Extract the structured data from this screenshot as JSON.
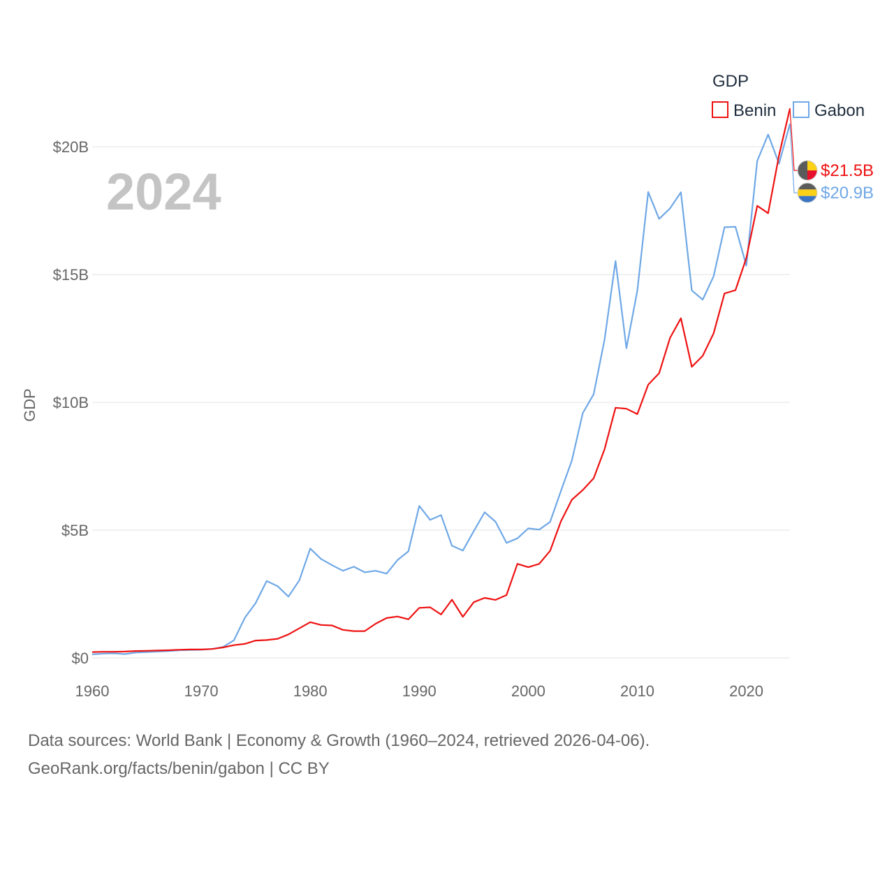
{
  "chart_data": {
    "type": "line",
    "title": "",
    "xlabel": "",
    "ylabel": "GDP",
    "current_year_label": "2024",
    "xlim": [
      1960,
      2024
    ],
    "ylim": [
      0,
      22000000000
    ],
    "x_ticks": [
      1960,
      1970,
      1980,
      1990,
      2000,
      2010,
      2020
    ],
    "x_tick_labels": [
      "1960",
      "1970",
      "1980",
      "1990",
      "2000",
      "2010",
      "2020"
    ],
    "y_ticks": [
      0,
      5000000000,
      10000000000,
      15000000000,
      20000000000
    ],
    "y_tick_labels": [
      "$0",
      "$5B",
      "$10B",
      "$15B",
      "$20B"
    ],
    "grid": true,
    "legend": {
      "title": "GDP",
      "placement": "top-right",
      "entries": [
        "Benin",
        "Gabon"
      ]
    },
    "x": [
      1960,
      1961,
      1962,
      1963,
      1964,
      1965,
      1966,
      1967,
      1968,
      1969,
      1970,
      1971,
      1972,
      1973,
      1974,
      1975,
      1976,
      1977,
      1978,
      1979,
      1980,
      1981,
      1982,
      1983,
      1984,
      1985,
      1986,
      1987,
      1988,
      1989,
      1990,
      1991,
      1992,
      1993,
      1994,
      1995,
      1996,
      1997,
      1998,
      1999,
      2000,
      2001,
      2002,
      2003,
      2004,
      2005,
      2006,
      2007,
      2008,
      2009,
      2010,
      2011,
      2012,
      2013,
      2014,
      2015,
      2016,
      2017,
      2018,
      2019,
      2020,
      2021,
      2022,
      2023,
      2024
    ],
    "series": [
      {
        "name": "Benin",
        "color": "#ee1111",
        "end_label": "$21.5B",
        "flag_colors": [
          "#5b5b5b",
          "#fcd116",
          "#e8112d"
        ],
        "values": [
          0.23,
          0.24,
          0.24,
          0.25,
          0.27,
          0.28,
          0.29,
          0.3,
          0.32,
          0.33,
          0.33,
          0.35,
          0.41,
          0.5,
          0.55,
          0.68,
          0.7,
          0.75,
          0.92,
          1.16,
          1.4,
          1.29,
          1.27,
          1.1,
          1.05,
          1.05,
          1.34,
          1.56,
          1.62,
          1.51,
          1.96,
          1.98,
          1.7,
          2.28,
          1.61,
          2.18,
          2.35,
          2.27,
          2.46,
          3.68,
          3.55,
          3.68,
          4.19,
          5.35,
          6.19,
          6.57,
          7.03,
          8.17,
          9.79,
          9.75,
          9.54,
          10.69,
          11.14,
          12.52,
          13.29,
          11.39,
          11.82,
          12.7,
          14.26,
          14.39,
          15.65,
          17.69,
          17.4,
          19.67,
          21.5
        ]
      },
      {
        "name": "Gabon",
        "color": "#6fa8e6",
        "end_label": "$20.9B",
        "flag_colors": [
          "#5b5b5b",
          "#fcd116",
          "#3a75c4"
        ],
        "values": [
          0.14,
          0.17,
          0.18,
          0.15,
          0.21,
          0.23,
          0.25,
          0.27,
          0.3,
          0.31,
          0.32,
          0.35,
          0.43,
          0.69,
          1.57,
          2.15,
          3.01,
          2.81,
          2.4,
          3.04,
          4.28,
          3.87,
          3.63,
          3.41,
          3.57,
          3.35,
          3.41,
          3.3,
          3.83,
          4.17,
          5.95,
          5.4,
          5.59,
          4.39,
          4.2,
          4.96,
          5.7,
          5.33,
          4.5,
          4.68,
          5.07,
          5.02,
          5.32,
          6.54,
          7.73,
          9.58,
          10.32,
          12.46,
          15.53,
          12.12,
          14.37,
          18.23,
          17.18,
          17.59,
          18.22,
          14.38,
          14.02,
          14.93,
          16.85,
          16.87,
          15.35,
          19.45,
          20.48,
          19.34,
          20.9
        ]
      }
    ]
  },
  "footer": {
    "source_line": "Data sources: World Bank | Economy & Growth (1960–2024, retrieved 2026-04-06).",
    "credit_line": "GeoRank.org/facts/benin/gabon | CC BY"
  }
}
